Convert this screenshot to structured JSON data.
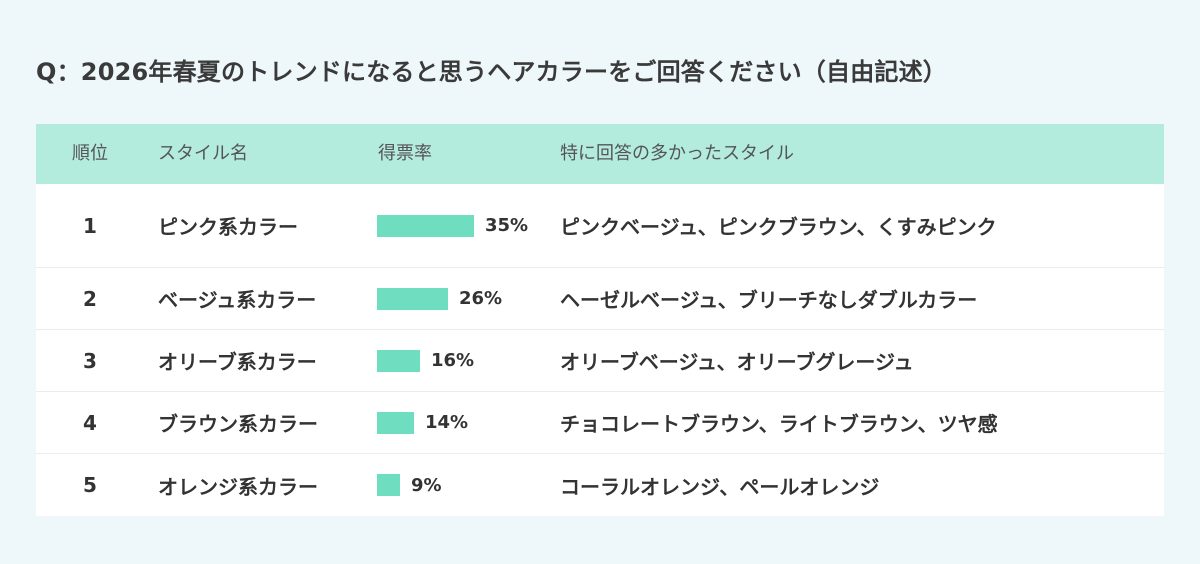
{
  "title": "Q：2026年春夏のトレンドになると思うヘアカラーをご回答ください（自由記述）",
  "colors": {
    "header_bg": "#b3ecdd",
    "bar": "#6fdec0",
    "page_bg": "#eef8fa"
  },
  "chart_data": {
    "type": "table",
    "title": "Q：2026年春夏のトレンドになると思うヘアカラーをご回答ください（自由記述）",
    "columns": [
      "順位",
      "スタイル名",
      "得票率",
      "特に回答の多かったスタイル"
    ],
    "rows": [
      {
        "rank": "1",
        "style": "ピンク系カラー",
        "value": 35,
        "label": "35%",
        "popular": "ピンクベージュ、ピンクブラウン、くすみピンク"
      },
      {
        "rank": "2",
        "style": "ベージュ系カラー",
        "value": 26,
        "label": "26%",
        "popular": "ヘーゼルベージュ、ブリーチなしダブルカラー"
      },
      {
        "rank": "3",
        "style": "オリーブ系カラー",
        "value": 16,
        "label": "16%",
        "popular": "オリーブベージュ、オリーブグレージュ"
      },
      {
        "rank": "4",
        "style": "ブラウン系カラー",
        "value": 14,
        "label": "14%",
        "popular": "チョコレートブラウン、ライトブラウン、ツヤ感"
      },
      {
        "rank": "5",
        "style": "オレンジ系カラー",
        "value": 9,
        "label": "9%",
        "popular": "コーラルオレンジ、ペールオレンジ"
      }
    ]
  }
}
